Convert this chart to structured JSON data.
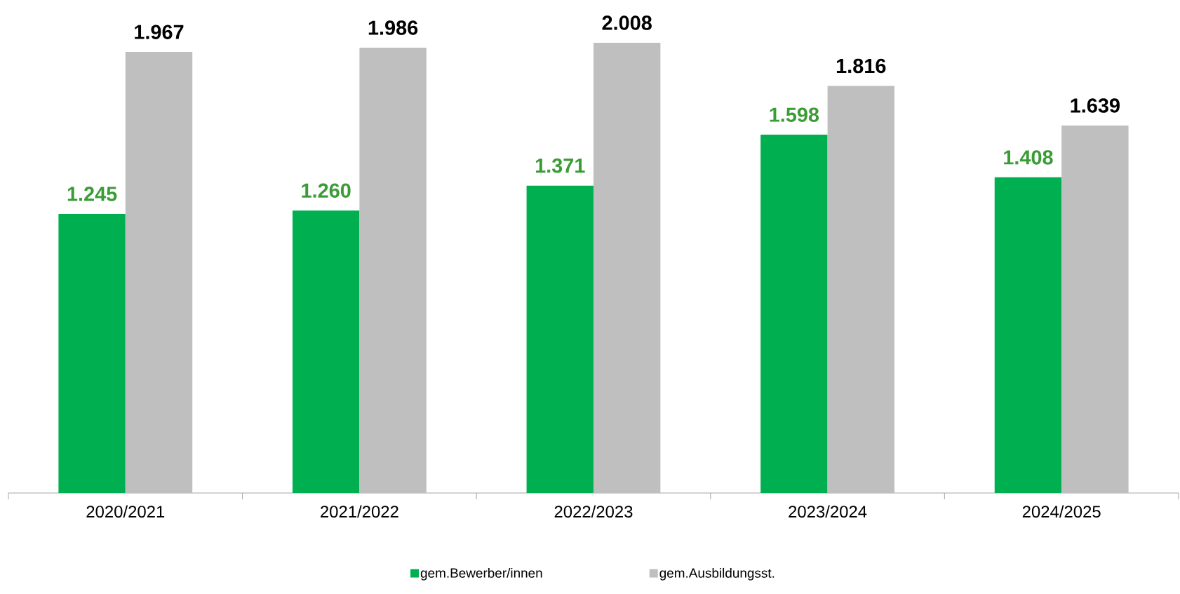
{
  "chart_data": {
    "type": "bar",
    "categories": [
      "2020/2021",
      "2021/2022",
      "2022/2023",
      "2023/2024",
      "2024/2025"
    ],
    "series": [
      {
        "name": "gem.Bewerber/innen",
        "color": "#00b050",
        "values": [
          1245,
          1260,
          1371,
          1598,
          1408
        ],
        "value_labels": [
          "1.245",
          "1.260",
          "1.371",
          "1.598",
          "1.408"
        ]
      },
      {
        "name": "gem.Ausbildungsst.",
        "color": "#bfbfbf",
        "values": [
          1967,
          1986,
          2008,
          1816,
          1639
        ],
        "value_labels": [
          "1.967",
          "1.986",
          "2.008",
          "1.816",
          "1.639"
        ]
      }
    ],
    "legend": "bottom"
  }
}
